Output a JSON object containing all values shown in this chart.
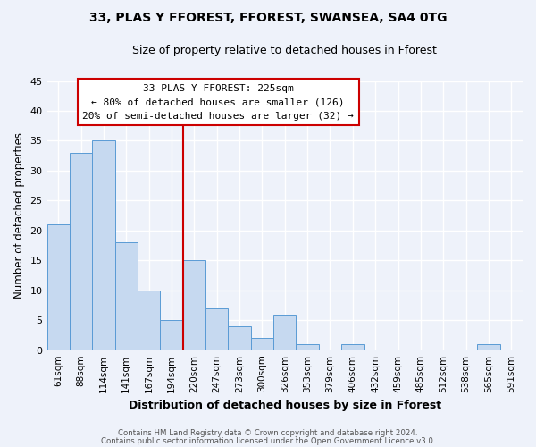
{
  "title1": "33, PLAS Y FFOREST, FFOREST, SWANSEA, SA4 0TG",
  "title2": "Size of property relative to detached houses in Fforest",
  "xlabel": "Distribution of detached houses by size in Fforest",
  "ylabel": "Number of detached properties",
  "bar_labels": [
    "61sqm",
    "88sqm",
    "114sqm",
    "141sqm",
    "167sqm",
    "194sqm",
    "220sqm",
    "247sqm",
    "273sqm",
    "300sqm",
    "326sqm",
    "353sqm",
    "379sqm",
    "406sqm",
    "432sqm",
    "459sqm",
    "485sqm",
    "512sqm",
    "538sqm",
    "565sqm",
    "591sqm"
  ],
  "bar_values": [
    21,
    33,
    35,
    18,
    10,
    5,
    15,
    7,
    4,
    2,
    6,
    1,
    0,
    1,
    0,
    0,
    0,
    0,
    0,
    1,
    0
  ],
  "bar_color": "#c6d9f0",
  "bar_edge_color": "#5a9bd5",
  "vline_x": 6,
  "vline_color": "#cc0000",
  "annotation_title": "33 PLAS Y FFOREST: 225sqm",
  "annotation_line1": "← 80% of detached houses are smaller (126)",
  "annotation_line2": "20% of semi-detached houses are larger (32) →",
  "annotation_box_color": "#ffffff",
  "annotation_box_edge": "#cc0000",
  "ylim": [
    0,
    45
  ],
  "yticks": [
    0,
    5,
    10,
    15,
    20,
    25,
    30,
    35,
    40,
    45
  ],
  "footer1": "Contains HM Land Registry data © Crown copyright and database right 2024.",
  "footer2": "Contains public sector information licensed under the Open Government Licence v3.0.",
  "bg_color": "#eef2fa",
  "plot_bg_color": "#eef2fa",
  "grid_color": "#ffffff"
}
